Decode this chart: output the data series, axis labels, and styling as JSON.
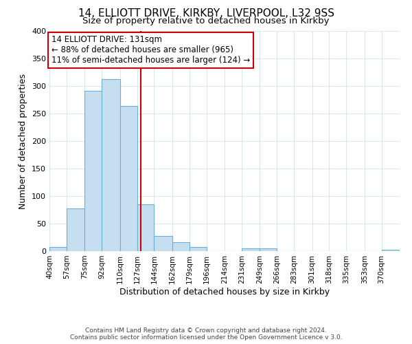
{
  "title": "14, ELLIOTT DRIVE, KIRKBY, LIVERPOOL, L32 9SS",
  "subtitle": "Size of property relative to detached houses in Kirkby",
  "xlabel": "Distribution of detached houses by size in Kirkby",
  "ylabel": "Number of detached properties",
  "footer_line1": "Contains HM Land Registry data © Crown copyright and database right 2024.",
  "footer_line2": "Contains public sector information licensed under the Open Government Licence v 3.0.",
  "annotation_line1": "14 ELLIOTT DRIVE: 131sqm",
  "annotation_line2": "← 88% of detached houses are smaller (965)",
  "annotation_line3": "11% of semi-detached houses are larger (124) →",
  "bar_edges": [
    40,
    57,
    75,
    92,
    110,
    127,
    144,
    162,
    179,
    196,
    214,
    231,
    249,
    266,
    283,
    301,
    318,
    335,
    353,
    370,
    388
  ],
  "bar_heights": [
    8,
    77,
    291,
    312,
    264,
    85,
    28,
    16,
    8,
    0,
    0,
    5,
    5,
    0,
    0,
    0,
    0,
    0,
    0,
    3
  ],
  "property_value": 131,
  "bar_color": "#c6dff0",
  "bar_edge_color": "#6aaed6",
  "vline_color": "#cc0000",
  "annotation_box_edge_color": "#cc0000",
  "background_color": "#ffffff",
  "grid_color": "#d8e8f0",
  "ylim": [
    0,
    400
  ],
  "title_fontsize": 11,
  "subtitle_fontsize": 9.5,
  "tick_label_fontsize": 7.5,
  "axis_label_fontsize": 9,
  "annotation_fontsize": 8.5,
  "footer_fontsize": 6.5
}
